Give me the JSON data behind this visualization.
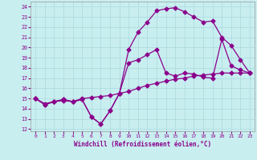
{
  "xlabel": "Windchill (Refroidissement éolien,°C)",
  "bg_color": "#c8eef0",
  "grid_color": "#b0dde0",
  "line_color": "#8b008b",
  "xlim": [
    -0.5,
    23.5
  ],
  "ylim": [
    11.8,
    24.5
  ],
  "xticks": [
    0,
    1,
    2,
    3,
    4,
    5,
    6,
    7,
    8,
    9,
    10,
    11,
    12,
    13,
    14,
    15,
    16,
    17,
    18,
    19,
    20,
    21,
    22,
    23
  ],
  "yticks": [
    12,
    13,
    14,
    15,
    16,
    17,
    18,
    19,
    20,
    21,
    22,
    23,
    24
  ],
  "line1_x": [
    0,
    1,
    2,
    3,
    4,
    5,
    6,
    7,
    8,
    9,
    10,
    11,
    12,
    13,
    14,
    15,
    16,
    17,
    18,
    19,
    20,
    21,
    22,
    23
  ],
  "line1_y": [
    15.0,
    14.5,
    14.7,
    14.8,
    14.7,
    15.0,
    15.1,
    15.2,
    15.3,
    15.5,
    15.7,
    16.0,
    16.3,
    16.5,
    16.7,
    16.9,
    17.0,
    17.2,
    17.3,
    17.4,
    17.5,
    17.5,
    17.5,
    17.5
  ],
  "line2_x": [
    0,
    1,
    2,
    3,
    4,
    5,
    6,
    7,
    8,
    9,
    10,
    11,
    12,
    13,
    14,
    15,
    16,
    17,
    18,
    19,
    20,
    21,
    22,
    23
  ],
  "line2_y": [
    15.0,
    14.4,
    14.7,
    14.9,
    14.7,
    14.9,
    13.2,
    12.5,
    13.8,
    15.5,
    18.5,
    18.8,
    19.3,
    19.8,
    17.5,
    17.2,
    17.5,
    17.4,
    17.1,
    17.0,
    20.8,
    18.2,
    17.8,
    17.5
  ],
  "line3_x": [
    0,
    1,
    2,
    3,
    4,
    5,
    6,
    7,
    8,
    9,
    10,
    11,
    12,
    13,
    14,
    15,
    16,
    17,
    18,
    19,
    20,
    21,
    22,
    23
  ],
  "line3_y": [
    15.0,
    14.4,
    14.7,
    14.9,
    14.7,
    14.9,
    13.2,
    12.5,
    13.8,
    15.5,
    19.8,
    21.5,
    22.5,
    23.6,
    23.8,
    23.9,
    23.5,
    23.0,
    22.5,
    22.6,
    21.0,
    20.2,
    18.8,
    17.5
  ]
}
